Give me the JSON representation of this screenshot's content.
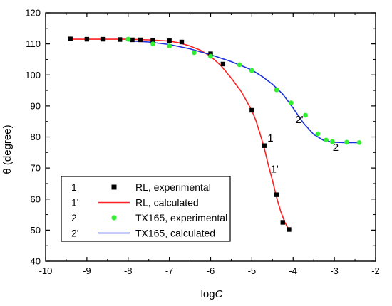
{
  "chart_data": {
    "type": "scatter",
    "title": "",
    "xlabel": "logC",
    "xlabel_parts": {
      "plain": "log",
      "italic": "C"
    },
    "ylabel": "θ (degree)",
    "xlim": [
      -10,
      -2
    ],
    "ylim": [
      40,
      120
    ],
    "xticks": [
      "-10",
      "-9",
      "-8",
      "-7",
      "-6",
      "-5",
      "-4",
      "-3",
      "-2"
    ],
    "yticks": [
      "40",
      "50",
      "60",
      "70",
      "80",
      "90",
      "100",
      "110",
      "120"
    ],
    "grid": false,
    "legend_position": "bottom-left",
    "series": [
      {
        "name": "RL, experimental",
        "key": "1",
        "kind": "scatter",
        "marker": "square",
        "color": "#000000",
        "x": [
          -9.4,
          -9.0,
          -8.6,
          -8.2,
          -7.9,
          -7.7,
          -7.4,
          -7.0,
          -6.7,
          -6.0,
          -5.7,
          -5.0,
          -4.7,
          -4.4,
          -4.25,
          -4.1
        ],
        "y": [
          111.6,
          111.5,
          111.5,
          111.4,
          111.3,
          111.3,
          111.2,
          111.0,
          110.6,
          106.8,
          103.5,
          88.6,
          77.2,
          61.4,
          52.5,
          50.2
        ]
      },
      {
        "name": "RL, calculated",
        "key": "1'",
        "kind": "line",
        "color": "#ff2020",
        "x": [
          -9.4,
          -9.0,
          -8.5,
          -8.0,
          -7.5,
          -7.0,
          -6.75,
          -6.5,
          -6.25,
          -6.0,
          -5.75,
          -5.5,
          -5.25,
          -5.0,
          -4.9,
          -4.8,
          -4.7,
          -4.6,
          -4.5,
          -4.4,
          -4.3,
          -4.2,
          -4.1
        ],
        "y": [
          111.5,
          111.5,
          111.5,
          111.5,
          111.3,
          110.9,
          110.3,
          109.3,
          108.0,
          106.0,
          103.0,
          99.0,
          94.5,
          88.5,
          85.2,
          81.0,
          76.5,
          71.0,
          66.0,
          60.5,
          56.0,
          52.5,
          50.0
        ]
      },
      {
        "name": "TX165, experimental",
        "key": "2",
        "kind": "scatter",
        "marker": "circle",
        "color": "#33ee33",
        "x": [
          -8.0,
          -7.4,
          -7.0,
          -6.4,
          -6.0,
          -5.3,
          -5.0,
          -4.4,
          -4.05,
          -3.7,
          -3.4,
          -3.2,
          -3.05,
          -2.7,
          -2.4
        ],
        "y": [
          111.5,
          110.0,
          109.3,
          107.2,
          106.0,
          103.3,
          101.4,
          95.2,
          91.0,
          87.0,
          81.0,
          79.0,
          78.5,
          78.3,
          78.2
        ]
      },
      {
        "name": "TX165, calculated",
        "key": "2'",
        "kind": "line",
        "color": "#1a2fe0",
        "x": [
          -8.0,
          -7.5,
          -7.0,
          -6.5,
          -6.0,
          -5.5,
          -5.0,
          -4.75,
          -4.5,
          -4.25,
          -4.0,
          -3.75,
          -3.5,
          -3.25,
          -3.0,
          -2.75,
          -2.5,
          -2.4
        ],
        "y": [
          111.0,
          110.6,
          109.8,
          108.4,
          106.5,
          104.3,
          101.6,
          99.5,
          97.0,
          93.8,
          89.3,
          84.5,
          80.8,
          78.8,
          78.3,
          78.2,
          78.2,
          78.2
        ]
      }
    ],
    "annotations": [
      {
        "text": "1",
        "x": -4.55,
        "y": 78.5
      },
      {
        "text": "1'",
        "x": -4.45,
        "y": 68.5
      },
      {
        "text": "2'",
        "x": -3.85,
        "y": 84.5
      },
      {
        "text": "2",
        "x": -2.97,
        "y": 75.5
      }
    ]
  }
}
